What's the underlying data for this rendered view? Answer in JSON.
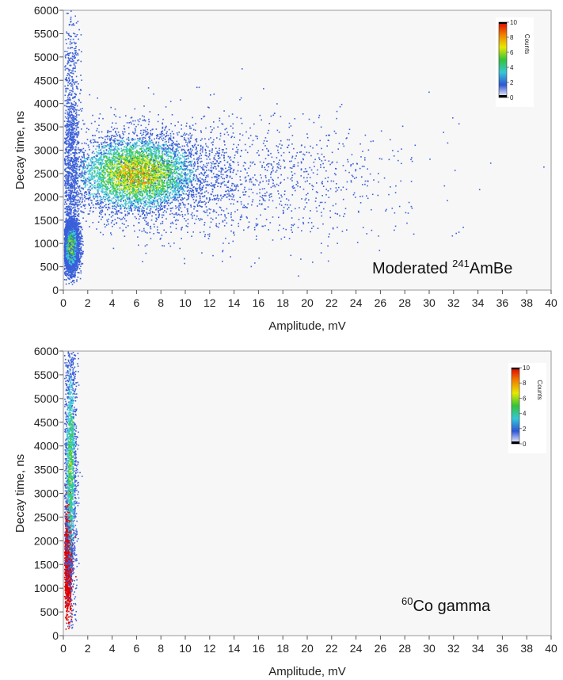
{
  "chart_data": [
    {
      "type": "heatmap",
      "xlabel": "Amplitude, mV",
      "ylabel": "Decay time, ns",
      "xlim": [
        0,
        40
      ],
      "ylim": [
        0,
        6000
      ],
      "x_ticks": [
        0,
        2,
        4,
        6,
        8,
        10,
        12,
        14,
        16,
        18,
        20,
        22,
        24,
        26,
        28,
        30,
        32,
        34,
        36,
        38,
        40
      ],
      "y_ticks": [
        0,
        500,
        1000,
        1500,
        2000,
        2500,
        3000,
        3500,
        4000,
        4500,
        5000,
        5500,
        6000
      ],
      "annotation": {
        "main": "Moderated ",
        "sup": "241",
        "rest": "AmBe"
      },
      "colorbar": {
        "label": "Counts",
        "ticks": [
          0,
          2,
          4,
          6,
          8,
          10
        ],
        "range": [
          0,
          10
        ]
      },
      "clusters": [
        {
          "x": 6,
          "y": 2500,
          "sx": 2.8,
          "sy": 450,
          "peak_counts": 6,
          "density": "high"
        },
        {
          "x": 0.6,
          "y": 950,
          "sx": 0.3,
          "sy": 250,
          "peak_counts": 5,
          "density": "high"
        },
        {
          "x": 0.6,
          "y": 3000,
          "sx": 0.35,
          "sy": 1500,
          "peak_counts": 1,
          "density": "low"
        },
        {
          "x": 14,
          "y": 2400,
          "sx": 7,
          "sy": 700,
          "peak_counts": 1,
          "density": "low"
        }
      ]
    },
    {
      "type": "heatmap",
      "xlabel": "Amplitude, mV",
      "ylabel": "Decay time, ns",
      "xlim": [
        0,
        40
      ],
      "ylim": [
        0,
        6000
      ],
      "x_ticks": [
        0,
        2,
        4,
        6,
        8,
        10,
        12,
        14,
        16,
        18,
        20,
        22,
        24,
        26,
        28,
        30,
        32,
        34,
        36,
        38,
        40
      ],
      "y_ticks": [
        0,
        500,
        1000,
        1500,
        2000,
        2500,
        3000,
        3500,
        4000,
        4500,
        5000,
        5500,
        6000
      ],
      "annotation": {
        "main": "",
        "sup": "60",
        "rest": "Co gamma"
      },
      "colorbar": {
        "label": "Counts",
        "ticks": [
          0,
          2,
          4,
          6,
          8,
          10
        ],
        "range": [
          0,
          10
        ]
      },
      "clusters": [
        {
          "x": 0.35,
          "y": 1600,
          "sx": 0.15,
          "sy": 550,
          "peak_counts": 10,
          "density": "saturated"
        },
        {
          "x": 0.55,
          "y": 3600,
          "sx": 0.25,
          "sy": 1400,
          "peak_counts": 4,
          "density": "medium"
        }
      ]
    }
  ],
  "colors": {
    "plot_background": "#f7f7f7",
    "colormap": [
      "#ffffff",
      "#3a5fd9",
      "#3fc8d8",
      "#37c840",
      "#e6e600",
      "#f08000",
      "#e00000"
    ]
  }
}
